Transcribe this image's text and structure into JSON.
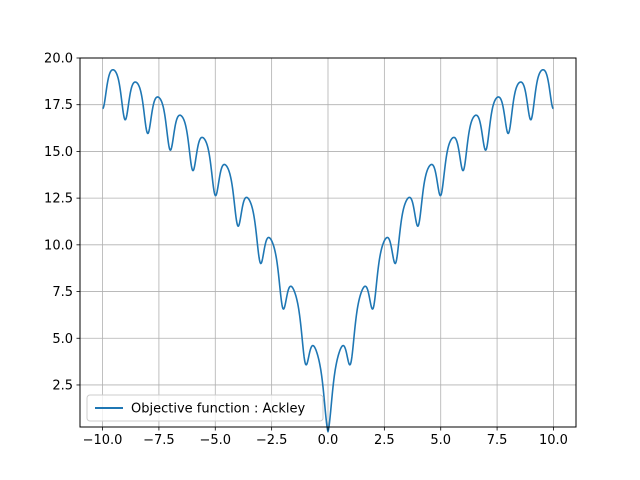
{
  "chart_data": {
    "type": "line",
    "title": "",
    "xlabel": "",
    "ylabel": "",
    "xlim": [
      -11.0,
      11.0
    ],
    "ylim": [
      0.25,
      20.0
    ],
    "grid": true,
    "legend_position": "lower-left",
    "x_ticks": [
      -10.0,
      -7.5,
      -5.0,
      -2.5,
      0.0,
      2.5,
      5.0,
      7.5,
      10.0
    ],
    "x_tick_labels": [
      "−10.0",
      "−7.5",
      "−5.0",
      "−2.5",
      "0.0",
      "2.5",
      "5.0",
      "7.5",
      "10.0"
    ],
    "y_ticks": [
      2.5,
      5.0,
      7.5,
      10.0,
      12.5,
      15.0,
      17.5,
      20.0
    ],
    "y_tick_labels": [
      "2.5",
      "5.0",
      "7.5",
      "10.0",
      "12.5",
      "15.0",
      "17.5",
      "20.0"
    ],
    "series": [
      {
        "name": "Objective function : Ackley",
        "color": "#1f77b4",
        "function": "ackley_2d_along_diagonal",
        "x_range": [
          -10,
          10
        ]
      }
    ]
  }
}
